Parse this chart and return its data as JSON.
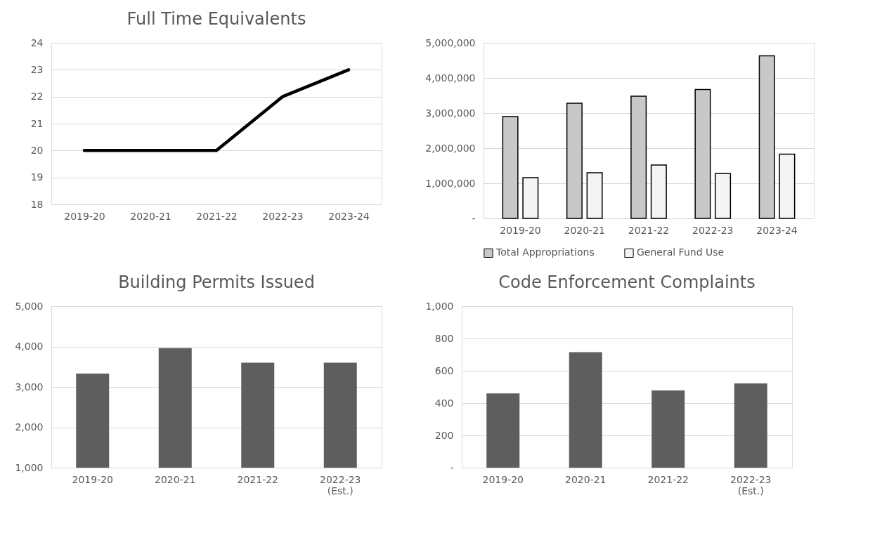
{
  "chart_data": [
    {
      "type": "line",
      "title": "Full Time Equivalents",
      "categories": [
        "2019-20",
        "2020-21",
        "2021-22",
        "2022-23",
        "2023-24"
      ],
      "series": [
        {
          "color": "#000000",
          "values": [
            20,
            20,
            20,
            22,
            23
          ]
        }
      ],
      "ylim": [
        18,
        24
      ],
      "yticks": [
        18,
        19,
        20,
        21,
        22,
        23,
        24
      ],
      "grid": "y",
      "marker": "none",
      "line_style": "solid",
      "legend": false
    },
    {
      "type": "bar",
      "categories": [
        "2019-20",
        "2020-21",
        "2021-22",
        "2022-23",
        "2023-24"
      ],
      "series": [
        {
          "name": "Total Appropriations",
          "color": "#c8c8c8",
          "values": [
            2900000,
            3280000,
            3480000,
            3670000,
            4630000
          ]
        },
        {
          "name": "General Fund Use",
          "color": "#f4f4f4",
          "values": [
            1160000,
            1300000,
            1520000,
            1280000,
            1830000
          ]
        }
      ],
      "ylim": [
        0,
        5000000
      ],
      "yticks": [
        {
          "value": 0,
          "label": "-"
        },
        {
          "value": 1000000,
          "label": "1,000,000"
        },
        {
          "value": 2000000,
          "label": "2,000,000"
        },
        {
          "value": 3000000,
          "label": "3,000,000"
        },
        {
          "value": 4000000,
          "label": "4,000,000"
        },
        {
          "value": 5000000,
          "label": "5,000,000"
        }
      ],
      "grid": "y",
      "legend": "bottom"
    },
    {
      "type": "bar",
      "title": "Building Permits Issued",
      "categories": [
        "2019-20",
        "2020-21",
        "2021-22",
        "2022-23 (Est.)"
      ],
      "series": [
        {
          "color": "#5e5e5e",
          "values": [
            3330,
            3960,
            3600,
            3600
          ]
        }
      ],
      "ylim": [
        1000,
        5000
      ],
      "yticks": [
        {
          "value": 1000,
          "label": "1,000"
        },
        {
          "value": 2000,
          "label": "2,000"
        },
        {
          "value": 3000,
          "label": "3,000"
        },
        {
          "value": 4000,
          "label": "4,000"
        },
        {
          "value": 5000,
          "label": "5,000"
        }
      ],
      "grid": "y",
      "legend": false
    },
    {
      "type": "bar",
      "title": "Code Enforcement Complaints",
      "categories": [
        "2019-20",
        "2020-21",
        "2021-22",
        "2022-23 (Est.)"
      ],
      "series": [
        {
          "color": "#5e5e5e",
          "values": [
            460,
            715,
            478,
            522
          ]
        }
      ],
      "ylim": [
        0,
        1000
      ],
      "yticks": [
        {
          "value": 0,
          "label": "-"
        },
        200,
        400,
        600,
        800,
        {
          "value": 1000,
          "label": "1,000"
        }
      ],
      "grid": "y",
      "legend": false
    }
  ]
}
